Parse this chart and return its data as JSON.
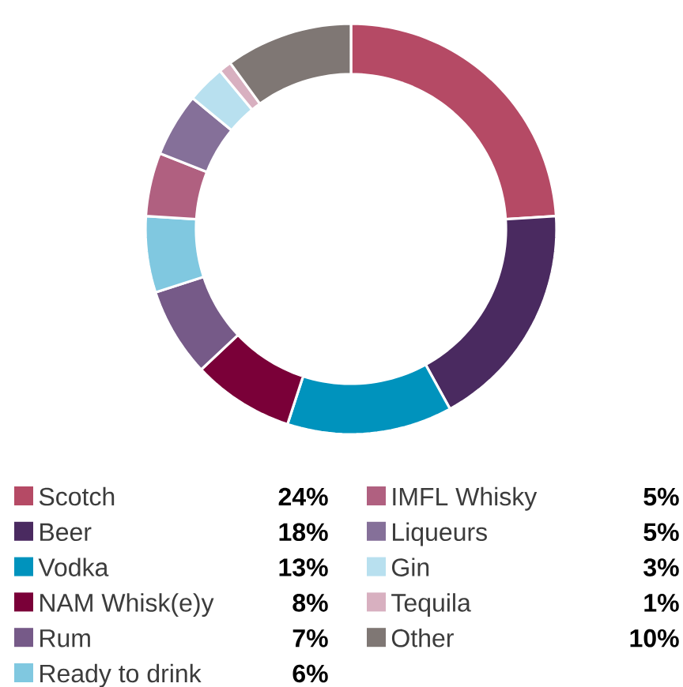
{
  "chart_data": {
    "type": "donut",
    "categories": [
      "Scotch",
      "Beer",
      "Vodka",
      "NAM Whisk(e)y",
      "Rum",
      "Ready to drink",
      "IMFL Whisky",
      "Liqueurs",
      "Gin",
      "Tequila",
      "Other"
    ],
    "values": [
      24,
      18,
      13,
      8,
      7,
      6,
      5,
      5,
      3,
      1,
      10
    ],
    "value_labels": [
      "24%",
      "18%",
      "13%",
      "8%",
      "7%",
      "6%",
      "5%",
      "5%",
      "3%",
      "1%",
      "10%"
    ],
    "colors": [
      "#b54a65",
      "#4a2a60",
      "#0093bd",
      "#7a0038",
      "#765a88",
      "#80c8e0",
      "#b06080",
      "#857099",
      "#b8e0ef",
      "#d8b0c0",
      "#7f7774"
    ],
    "legend": "bottom"
  }
}
